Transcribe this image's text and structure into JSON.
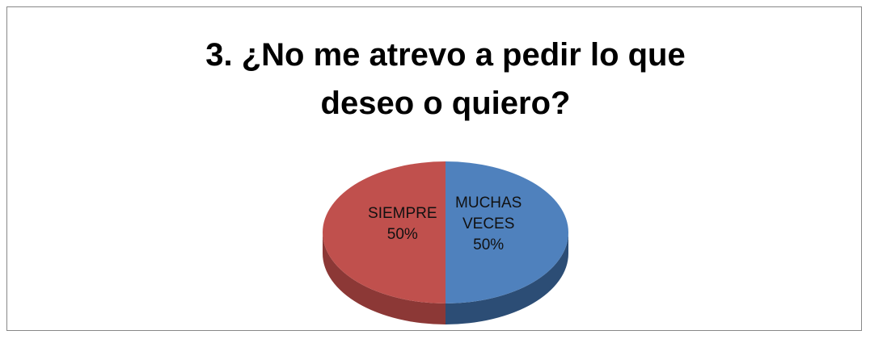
{
  "chart_data": {
    "type": "pie",
    "title": "3. ¿No me atrevo a pedir lo que deseo o quiero?",
    "categories": [
      "MUCHAS VECES",
      "SIEMPRE"
    ],
    "values": [
      50,
      50
    ],
    "value_labels": [
      "50%",
      "50%"
    ],
    "colors": [
      "#4f81bd",
      "#c0504d"
    ],
    "side_colors": [
      "#2c4d75",
      "#8c3836"
    ]
  }
}
